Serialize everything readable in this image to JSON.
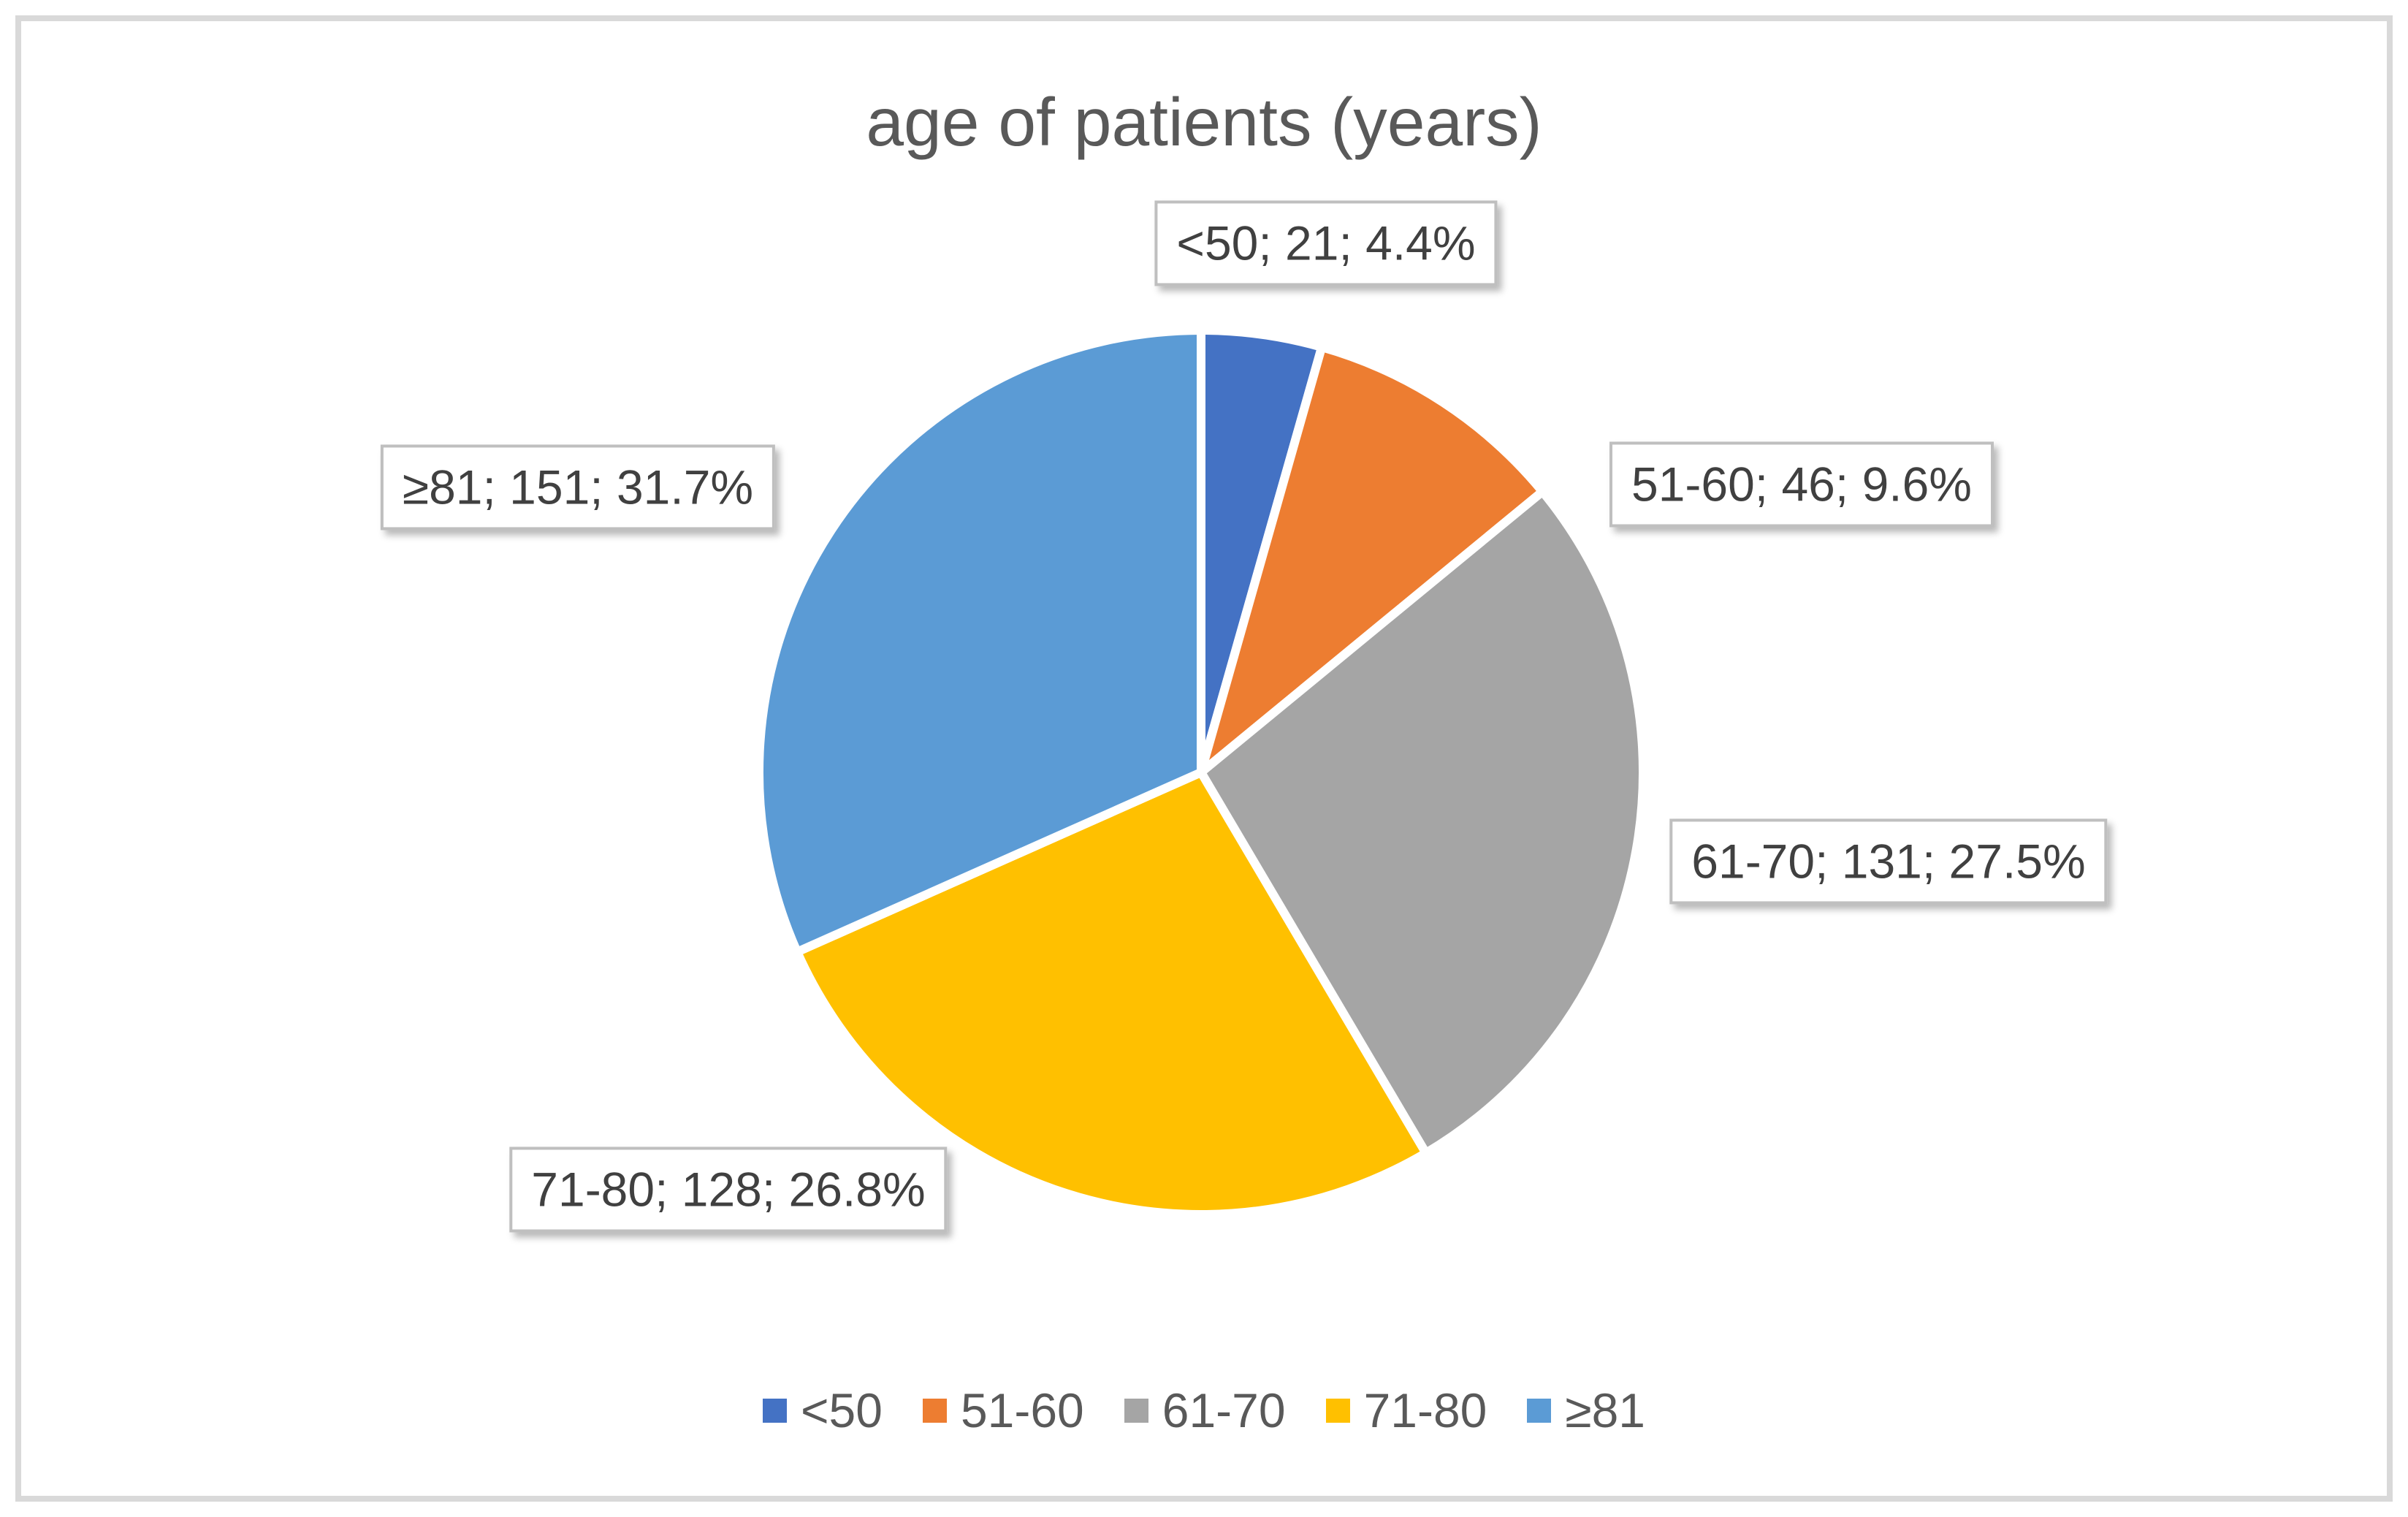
{
  "chart_data": {
    "type": "pie",
    "title": "age of patients (years)",
    "categories": [
      "<50",
      "51-60",
      "61-70",
      "71-80",
      "≥81"
    ],
    "values": [
      21,
      46,
      131,
      128,
      151
    ],
    "percents": [
      4.4,
      9.6,
      27.5,
      26.8,
      31.7
    ],
    "data_labels": [
      "<50; 21; 4.4%",
      "51-60; 46; 9.6%",
      "61-70; 131; 27.5%",
      "71-80; 128; 26.8%",
      "≥81; 151; 31.7%"
    ],
    "colors": [
      "#4472C4",
      "#ED7D31",
      "#A5A5A5",
      "#FFC000",
      "#5B9BD5"
    ],
    "slice_border_color": "#ffffff",
    "start_angle_deg": 0,
    "direction": "clockwise",
    "legend_position": "bottom",
    "legend_entries": [
      "<50",
      "51-60",
      "61-70",
      "71-80",
      "≥81"
    ],
    "title_color": "#595959",
    "label_text_color": "#404040",
    "label_box_border_color": "#bfbfbf",
    "frame_border_color": "#d9d9d9"
  }
}
